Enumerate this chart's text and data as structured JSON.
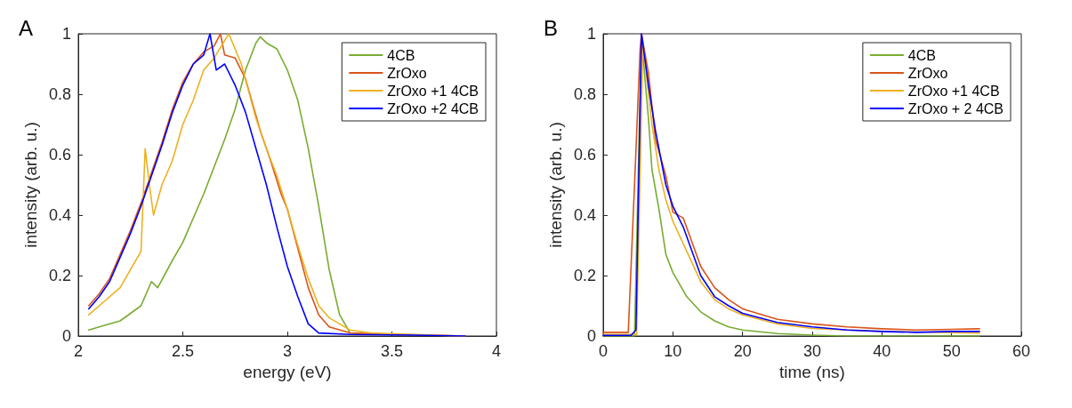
{
  "chart_data": [
    {
      "type": "line",
      "title": "A",
      "xlabel": "energy (eV)",
      "ylabel": "intensity (arb. u.)",
      "xlim": [
        2,
        4
      ],
      "xticks": [
        2,
        2.5,
        3,
        3.5,
        4
      ],
      "ylim": [
        0,
        1
      ],
      "yticks": [
        0,
        0.2,
        0.4,
        0.6,
        0.8,
        1
      ],
      "grid": false,
      "legend": "top right",
      "marker": "none",
      "line_style": "solid",
      "series": [
        {
          "name": "4CB",
          "color": "#77ac30",
          "x": [
            2.05,
            2.1,
            2.2,
            2.3,
            2.35,
            2.38,
            2.45,
            2.5,
            2.6,
            2.7,
            2.75,
            2.8,
            2.85,
            2.87,
            2.9,
            2.95,
            3.0,
            3.05,
            3.1,
            3.15,
            3.2,
            3.25,
            3.3,
            3.4
          ],
          "values": [
            0.02,
            0.03,
            0.05,
            0.1,
            0.18,
            0.16,
            0.25,
            0.31,
            0.47,
            0.65,
            0.75,
            0.88,
            0.97,
            0.99,
            0.97,
            0.95,
            0.88,
            0.78,
            0.62,
            0.43,
            0.22,
            0.07,
            0.01,
            0.005
          ]
        },
        {
          "name": "ZrOxo",
          "color": "#d95319",
          "x": [
            2.05,
            2.1,
            2.15,
            2.2,
            2.25,
            2.3,
            2.35,
            2.4,
            2.45,
            2.5,
            2.55,
            2.6,
            2.65,
            2.68,
            2.7,
            2.75,
            2.8,
            2.87,
            2.92,
            2.97,
            3.0,
            3.05,
            3.1,
            3.15,
            3.2,
            3.3,
            3.5,
            3.85
          ],
          "values": [
            0.1,
            0.14,
            0.19,
            0.27,
            0.35,
            0.44,
            0.54,
            0.64,
            0.75,
            0.84,
            0.9,
            0.94,
            0.96,
            1.0,
            0.93,
            0.92,
            0.85,
            0.68,
            0.58,
            0.47,
            0.42,
            0.29,
            0.16,
            0.07,
            0.03,
            0.01,
            0.005,
            0
          ]
        },
        {
          "name": "ZrOxo +1 4CB",
          "color": "#edb120",
          "x": [
            2.05,
            2.1,
            2.2,
            2.25,
            2.3,
            2.32,
            2.34,
            2.36,
            2.4,
            2.45,
            2.5,
            2.55,
            2.6,
            2.65,
            2.72,
            2.78,
            2.85,
            2.9,
            2.95,
            3.0,
            3.05,
            3.1,
            3.15,
            3.2,
            3.25,
            3.3,
            3.4,
            3.6,
            3.85
          ],
          "values": [
            0.07,
            0.1,
            0.16,
            0.22,
            0.28,
            0.62,
            0.5,
            0.4,
            0.5,
            0.58,
            0.7,
            0.78,
            0.88,
            0.92,
            1.0,
            0.9,
            0.72,
            0.62,
            0.53,
            0.42,
            0.3,
            0.19,
            0.1,
            0.06,
            0.04,
            0.02,
            0.01,
            0.005,
            0
          ]
        },
        {
          "name": "ZrOxo +2 4CB",
          "color": "#0000ff",
          "x": [
            2.05,
            2.1,
            2.15,
            2.2,
            2.25,
            2.3,
            2.35,
            2.4,
            2.45,
            2.5,
            2.55,
            2.6,
            2.63,
            2.66,
            2.7,
            2.75,
            2.8,
            2.85,
            2.9,
            2.95,
            3.0,
            3.05,
            3.1,
            3.15,
            3.3,
            3.6,
            3.85
          ],
          "values": [
            0.09,
            0.13,
            0.18,
            0.26,
            0.34,
            0.43,
            0.53,
            0.63,
            0.74,
            0.83,
            0.9,
            0.93,
            1.0,
            0.88,
            0.9,
            0.83,
            0.74,
            0.62,
            0.5,
            0.36,
            0.23,
            0.13,
            0.04,
            0.01,
            0.005,
            0.003,
            0
          ]
        }
      ]
    },
    {
      "type": "line",
      "title": "B",
      "xlabel": "time (ns)",
      "ylabel": "intensity (arb. u.)",
      "xlim": [
        0,
        60
      ],
      "xticks": [
        0,
        10,
        20,
        30,
        40,
        50,
        60
      ],
      "ylim": [
        0,
        1
      ],
      "yticks": [
        0,
        0.2,
        0.4,
        0.6,
        0.8,
        1
      ],
      "grid": false,
      "legend": "top right",
      "marker": "none",
      "line_style": "solid",
      "series": [
        {
          "name": "4CB",
          "color": "#77ac30",
          "x": [
            0,
            4.5,
            5.5,
            6,
            6.5,
            7,
            8,
            9,
            10,
            12,
            14,
            16,
            18,
            20,
            25,
            30,
            35,
            54
          ],
          "values": [
            0,
            0,
            1.0,
            0.85,
            0.72,
            0.55,
            0.42,
            0.27,
            0.21,
            0.13,
            0.08,
            0.05,
            0.03,
            0.02,
            0.008,
            0.003,
            0,
            0
          ]
        },
        {
          "name": "ZrOxo",
          "color": "#d95319",
          "x": [
            0,
            3.6,
            4.5,
            5.3,
            5.5,
            6.5,
            7.5,
            9,
            10,
            11.5,
            14,
            16,
            18,
            20,
            25,
            30,
            35,
            40,
            45,
            50,
            54
          ],
          "values": [
            0.012,
            0.012,
            0.5,
            0.95,
            1.0,
            0.87,
            0.65,
            0.53,
            0.41,
            0.39,
            0.23,
            0.16,
            0.12,
            0.09,
            0.055,
            0.04,
            0.03,
            0.024,
            0.02,
            0.022,
            0.024
          ]
        },
        {
          "name": "ZrOxo +1 4CB",
          "color": "#edb120",
          "x": [
            0,
            4.8,
            5.7,
            7,
            8,
            9,
            10,
            12,
            14,
            16,
            18,
            20,
            25,
            30,
            40,
            54
          ],
          "values": [
            0.005,
            0.005,
            0.97,
            0.7,
            0.55,
            0.45,
            0.38,
            0.28,
            0.18,
            0.12,
            0.09,
            0.07,
            0.04,
            0.025,
            0.015,
            0.01
          ]
        },
        {
          "name": "ZrOxo + 2 4CB",
          "color": "#0000ff",
          "x": [
            0,
            4,
            4.7,
            5.5,
            6.5,
            7.5,
            9,
            10,
            11.5,
            14,
            16,
            18,
            20,
            25,
            30,
            35,
            40,
            45,
            50,
            54
          ],
          "values": [
            0.002,
            0.002,
            0.02,
            1.0,
            0.83,
            0.68,
            0.5,
            0.43,
            0.36,
            0.2,
            0.13,
            0.1,
            0.075,
            0.045,
            0.03,
            0.02,
            0.015,
            0.012,
            0.015,
            0.015
          ]
        }
      ]
    }
  ]
}
